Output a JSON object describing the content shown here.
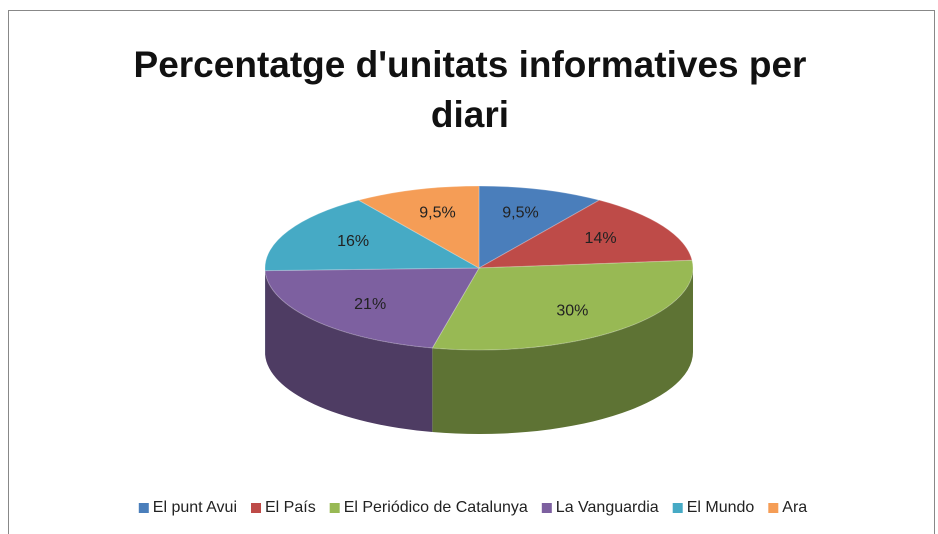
{
  "chart_data": {
    "type": "pie3d",
    "title": "Percentatge d'unitats informatives per diari",
    "categories": [
      "El punt Avui",
      "El País",
      "El Periódico de Catalunya",
      "La Vanguardia",
      "El Mundo",
      "Ara"
    ],
    "values": [
      9.5,
      14,
      30,
      21,
      16,
      9.5
    ],
    "value_labels": [
      "9,5%",
      "14%",
      "30%",
      "21%",
      "16%",
      "9,5%"
    ],
    "colors": [
      "#4a7ebb",
      "#be4b48",
      "#98b954",
      "#7d60a0",
      "#46aac5",
      "#f59d56"
    ],
    "legend": "bottom"
  }
}
